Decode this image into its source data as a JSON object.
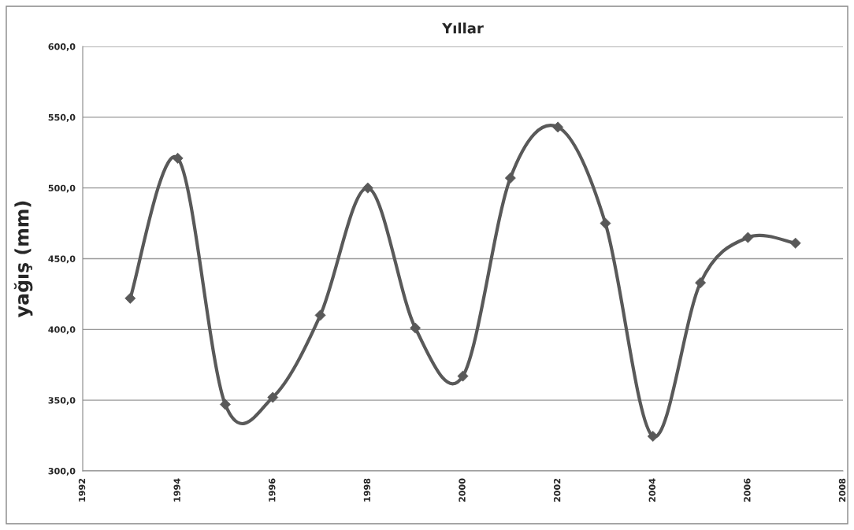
{
  "chart_data": {
    "type": "line",
    "title": "Yıllar",
    "ylabel": "yağış (mm)",
    "x": [
      1993,
      1994,
      1995,
      1996,
      1997,
      1998,
      1999,
      2000,
      2001,
      2002,
      2003,
      2004,
      2005,
      2006,
      2007
    ],
    "series": [
      {
        "color": "#595959",
        "values": [
          422,
          521,
          347,
          352,
          410,
          500,
          401,
          367,
          507,
          543,
          475,
          324.5,
          433,
          465,
          461
        ]
      }
    ],
    "xlim": [
      1992,
      2008
    ],
    "xticks": [
      1992,
      1994,
      1996,
      1998,
      2000,
      2002,
      2004,
      2006,
      2008
    ],
    "ylim": [
      300,
      600
    ],
    "yticks": [
      {
        "value": 300,
        "label": "300,0"
      },
      {
        "value": 350,
        "label": "350,0"
      },
      {
        "value": 400,
        "label": "400,0"
      },
      {
        "value": 450,
        "label": "450,0"
      },
      {
        "value": 500,
        "label": "500,0"
      },
      {
        "value": 550,
        "label": "550,0"
      },
      {
        "value": 600,
        "label": "600,0"
      }
    ],
    "grid": "y",
    "marker": "diamond",
    "line_style": "solid"
  }
}
